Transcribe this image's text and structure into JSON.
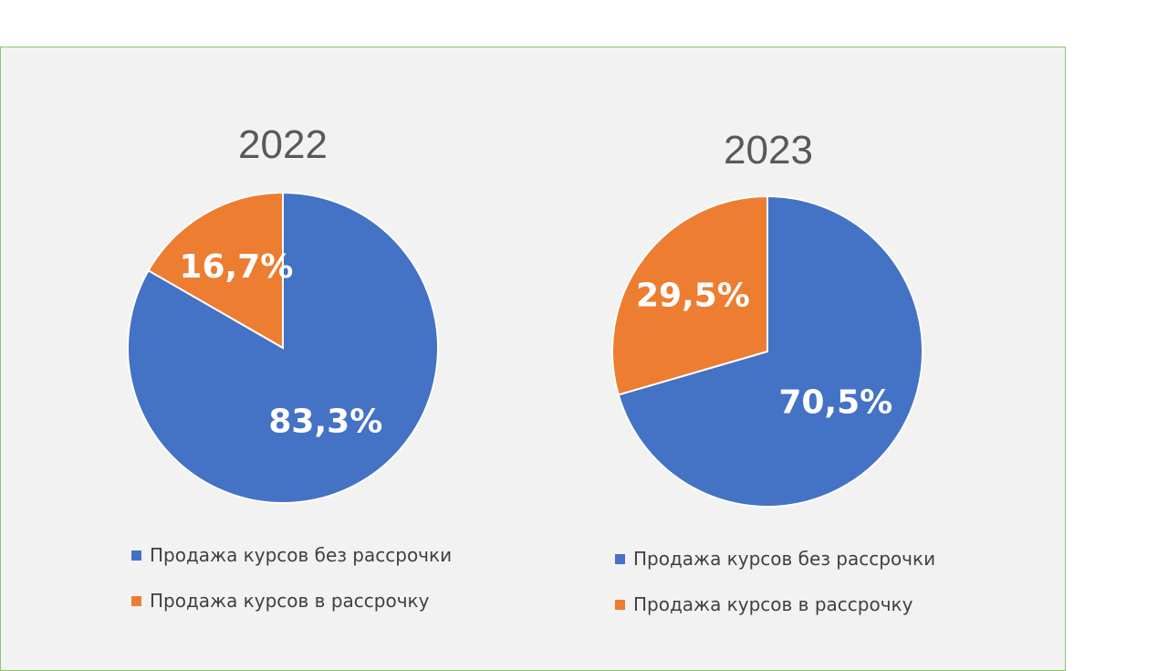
{
  "colors": {
    "without_installments": "#4472c4",
    "installments": "#ed7d31"
  },
  "chart_data": [
    {
      "type": "pie",
      "title": "2022",
      "categories": [
        "Продажа курсов без рассрочки",
        "Продажа курсов в рассрочку"
      ],
      "values": [
        83.3,
        16.7
      ],
      "data_labels": [
        "83,3%",
        "16,7%"
      ],
      "legend_position": "bottom"
    },
    {
      "type": "pie",
      "title": "2023",
      "categories": [
        "Продажа курсов без рассрочки",
        "Продажа курсов в рассрочку"
      ],
      "values": [
        70.5,
        29.5
      ],
      "data_labels": [
        "70,5%",
        "29,5%"
      ],
      "legend_position": "bottom"
    }
  ]
}
